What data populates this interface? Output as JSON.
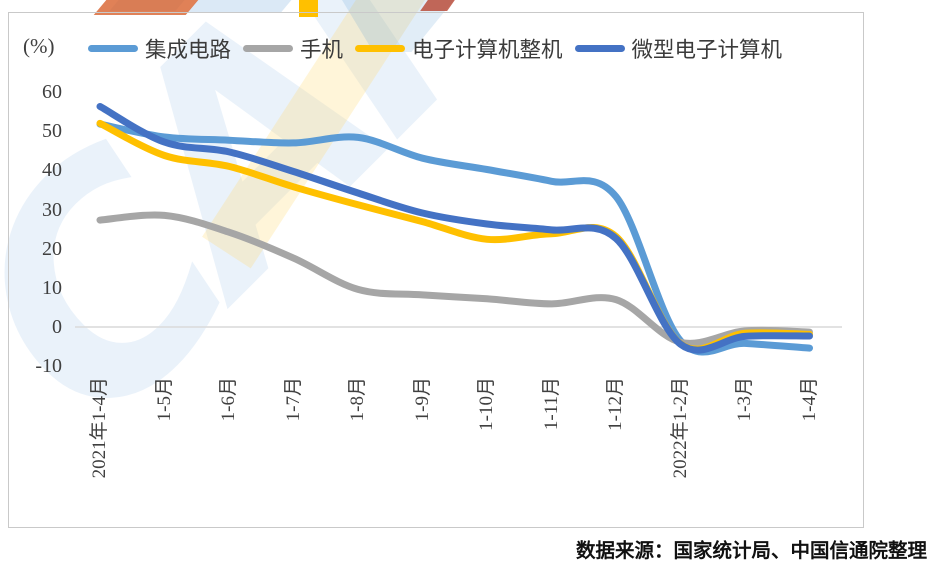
{
  "watermark": "CAI",
  "chart_data": {
    "type": "line",
    "unit_label": "(%)",
    "title": "",
    "xlabel": "",
    "ylabel": "(%)",
    "categories": [
      "2021年1-4月",
      "1-5月",
      "1-6月",
      "1-7月",
      "1-8月",
      "1-9月",
      "1-10月",
      "1-11月",
      "1-12月",
      "2022年1-2月",
      "1-3月",
      "1-4月"
    ],
    "series": [
      {
        "key": "integrated-circuits",
        "name": "集成电路",
        "color": "#5B9BD5",
        "values": [
          51.8,
          48.5,
          47.7,
          47.0,
          48.4,
          43.1,
          40.2,
          37.2,
          33.3,
          -3.5,
          -4.2,
          -5.4
        ]
      },
      {
        "key": "mobile-phones",
        "name": "手机",
        "color": "#A6A6A6",
        "values": [
          27.3,
          28.5,
          24.2,
          17.6,
          9.6,
          8.2,
          7.2,
          5.9,
          7.0,
          -3.9,
          -1.0,
          -1.3
        ]
      },
      {
        "key": "computers",
        "name": "电子计算机整机",
        "color": "#FFC000",
        "values": [
          52.0,
          43.8,
          41.0,
          35.8,
          31.2,
          26.9,
          22.4,
          23.8,
          23.1,
          -4.3,
          -1.6,
          -1.9
        ]
      },
      {
        "key": "micro-computers",
        "name": "微型电子计算机",
        "color": "#4472C4",
        "values": [
          56.3,
          47.2,
          44.7,
          39.7,
          34.2,
          29.1,
          26.3,
          24.8,
          22.6,
          -4.4,
          -2.4,
          -2.3
        ]
      }
    ],
    "ylim": [
      -10,
      60
    ],
    "yticks": [
      60,
      50,
      40,
      30,
      20,
      10,
      0,
      -10
    ],
    "grid": false,
    "legend_position": "top",
    "source_note": "数据来源：国家统计局、中国信通院整理"
  }
}
